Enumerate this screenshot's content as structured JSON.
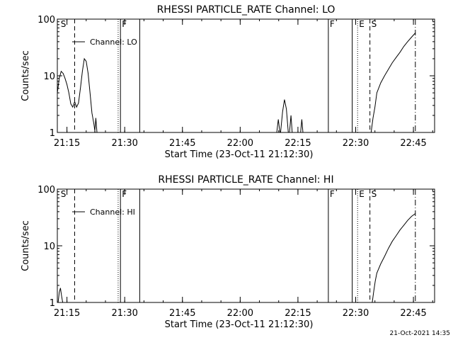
{
  "chart_data": [
    {
      "type": "line",
      "title": "RHESSI PARTICLE_RATE Channel: LO",
      "xlabel": "Start Time (23-Oct-11 21:12:30)",
      "ylabel": "Counts/sec",
      "x_unit": "minutes after 21:12:30",
      "xlim": [
        0,
        98
      ],
      "ylim": [
        1,
        100
      ],
      "yscale": "log",
      "xticks": [
        {
          "x": 2.5,
          "label": "21:15"
        },
        {
          "x": 17.5,
          "label": "21:30"
        },
        {
          "x": 32.5,
          "label": "21:45"
        },
        {
          "x": 47.5,
          "label": "22:00"
        },
        {
          "x": 62.5,
          "label": "22:15"
        },
        {
          "x": 77.5,
          "label": "22:30"
        },
        {
          "x": 92.5,
          "label": "22:45"
        }
      ],
      "yticks": [
        {
          "y": 1,
          "label": "1"
        },
        {
          "y": 10,
          "label": "10"
        },
        {
          "y": 100,
          "label": "100"
        }
      ],
      "legend": {
        "label": "Channel: LO",
        "placement": "top-left"
      },
      "markers": [
        {
          "x": 0.5,
          "label": "S",
          "style": "none"
        },
        {
          "x": 4.5,
          "label": "",
          "style": "dashed"
        },
        {
          "x": 15.8,
          "label": "",
          "style": "dotted"
        },
        {
          "x": 16.4,
          "label": "F",
          "style": "solid"
        },
        {
          "x": 21.4,
          "label": "",
          "style": "solid"
        },
        {
          "x": 70.4,
          "label": "F",
          "style": "solid"
        },
        {
          "x": 76.6,
          "label": "",
          "style": "solid"
        },
        {
          "x": 78.0,
          "label": "E",
          "style": "dotted"
        },
        {
          "x": 81.2,
          "label": "S",
          "style": "dashed"
        },
        {
          "x": 93.0,
          "label": "",
          "style": "dashdot"
        }
      ],
      "series": [
        {
          "segments": [
            [
              [
                0,
                5
              ],
              [
                0.5,
                9
              ],
              [
                1.0,
                12
              ],
              [
                1.5,
                11
              ],
              [
                2.0,
                9
              ],
              [
                2.5,
                7
              ],
              [
                3.0,
                5
              ],
              [
                3.5,
                3.2
              ],
              [
                4.0,
                2.8
              ],
              [
                4.5,
                3.5
              ],
              [
                5.0,
                2.8
              ],
              [
                5.5,
                3.3
              ],
              [
                6.0,
                6
              ],
              [
                6.5,
                12
              ],
              [
                7.0,
                20
              ],
              [
                7.5,
                18
              ],
              [
                8.0,
                11
              ],
              [
                8.5,
                5
              ],
              [
                9.0,
                2.2
              ],
              [
                9.5,
                1.4
              ],
              [
                9.8,
                1
              ]
            ],
            [
              [
                9.7,
                1
              ],
              [
                10.0,
                1.8
              ],
              [
                10.3,
                1
              ]
            ],
            [
              [
                57.0,
                1
              ],
              [
                57.4,
                1.7
              ],
              [
                57.8,
                1
              ]
            ],
            [
              [
                58.0,
                1
              ],
              [
                58.5,
                2.3
              ],
              [
                59.0,
                3.8
              ],
              [
                59.5,
                2.6
              ],
              [
                60.0,
                1
              ]
            ],
            [
              [
                60.3,
                1
              ],
              [
                60.7,
                2.0
              ],
              [
                61.0,
                1
              ]
            ],
            [
              [
                63.2,
                1
              ],
              [
                63.5,
                1.7
              ],
              [
                63.8,
                1
              ]
            ],
            [
              [
                81.5,
                1
              ],
              [
                82,
                1.8
              ],
              [
                82.5,
                2.8
              ],
              [
                83,
                5.0
              ],
              [
                84,
                7.5
              ],
              [
                85,
                10
              ],
              [
                86,
                13
              ],
              [
                87,
                17
              ],
              [
                88,
                21
              ],
              [
                89,
                26
              ],
              [
                90,
                33
              ],
              [
                91,
                40
              ],
              [
                92,
                48
              ],
              [
                93,
                57
              ]
            ]
          ]
        }
      ]
    },
    {
      "type": "line",
      "title": "RHESSI PARTICLE_RATE Channel: HI",
      "xlabel": "Start Time (23-Oct-11 21:12:30)",
      "ylabel": "Counts/sec",
      "x_unit": "minutes after 21:12:30",
      "xlim": [
        0,
        98
      ],
      "ylim": [
        1,
        100
      ],
      "yscale": "log",
      "xticks": [
        {
          "x": 2.5,
          "label": "21:15"
        },
        {
          "x": 17.5,
          "label": "21:30"
        },
        {
          "x": 32.5,
          "label": "21:45"
        },
        {
          "x": 47.5,
          "label": "22:00"
        },
        {
          "x": 62.5,
          "label": "22:15"
        },
        {
          "x": 77.5,
          "label": "22:30"
        },
        {
          "x": 92.5,
          "label": "22:45"
        }
      ],
      "yticks": [
        {
          "y": 1,
          "label": "1"
        },
        {
          "y": 10,
          "label": "10"
        },
        {
          "y": 100,
          "label": "100"
        }
      ],
      "legend": {
        "label": "Channel: HI",
        "placement": "top-left"
      },
      "markers": [
        {
          "x": 0.5,
          "label": "S",
          "style": "none"
        },
        {
          "x": 4.5,
          "label": "",
          "style": "dashed"
        },
        {
          "x": 15.8,
          "label": "",
          "style": "dotted"
        },
        {
          "x": 16.4,
          "label": "F",
          "style": "solid"
        },
        {
          "x": 21.4,
          "label": "",
          "style": "solid"
        },
        {
          "x": 70.4,
          "label": "F",
          "style": "solid"
        },
        {
          "x": 76.6,
          "label": "",
          "style": "solid"
        },
        {
          "x": 78.0,
          "label": "E",
          "style": "dotted"
        },
        {
          "x": 81.2,
          "label": "S",
          "style": "dashed"
        },
        {
          "x": 93.0,
          "label": "",
          "style": "dashdot"
        }
      ],
      "series": [
        {
          "segments": [
            [
              [
                0.2,
                1
              ],
              [
                0.5,
                1.5
              ],
              [
                0.8,
                1.8
              ],
              [
                1.1,
                1.3
              ],
              [
                1.4,
                1
              ]
            ],
            [
              [
                81.8,
                1
              ],
              [
                82.2,
                1.6
              ],
              [
                82.6,
                2.4
              ],
              [
                83,
                3.3
              ],
              [
                84,
                4.8
              ],
              [
                85,
                6.5
              ],
              [
                86,
                9
              ],
              [
                87,
                12
              ],
              [
                88,
                15
              ],
              [
                89,
                19
              ],
              [
                90,
                23
              ],
              [
                91,
                28
              ],
              [
                92,
                33
              ],
              [
                93,
                37
              ]
            ]
          ]
        }
      ]
    }
  ],
  "footer": {
    "timestamp": "21-Oct-2021 14:35"
  }
}
